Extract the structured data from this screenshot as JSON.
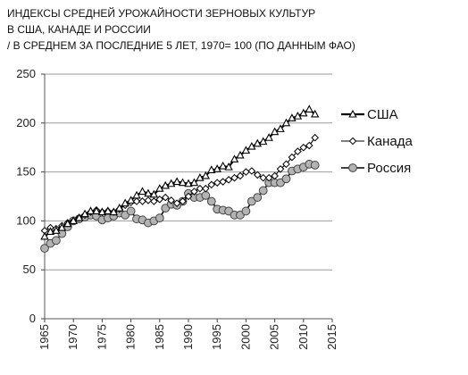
{
  "title_lines": [
    "ИНДЕКСЫ СРЕДНЕЙ УРОЖАЙНОСТИ ЗЕРНОВЫХ КУЛЬТУР",
    "В США, КАНАДЕ И РОССИИ",
    "/ В СРЕДНЕМ ЗА ПОСЛЕДНИЕ 5 ЛЕТ, 1970= 100 (ПО ДАННЫМ ФАО)"
  ],
  "chart_data": {
    "type": "line",
    "title": "ИНДЕКСЫ СРЕДНЕЙ УРОЖАЙНОСТИ ЗЕРНОВЫХ КУЛЬТУР В США, КАНАДЕ И РОССИИ / В СРЕДНЕМ ЗА ПОСЛЕДНИЕ 5 ЛЕТ, 1970= 100 (ПО ДАННЫМ ФАО)",
    "xlabel": "",
    "ylabel": "",
    "xlim": [
      1965,
      2015
    ],
    "ylim": [
      0,
      250
    ],
    "x_ticks": [
      1965,
      1970,
      1975,
      1980,
      1985,
      1990,
      1995,
      2000,
      2005,
      2010,
      2015
    ],
    "y_ticks": [
      0,
      50,
      100,
      150,
      200,
      250
    ],
    "grid": "horizontal",
    "legend_position": "right",
    "x": [
      1965,
      1966,
      1967,
      1968,
      1969,
      1970,
      1971,
      1972,
      1973,
      1974,
      1975,
      1976,
      1977,
      1978,
      1979,
      1980,
      1981,
      1982,
      1983,
      1984,
      1985,
      1986,
      1987,
      1988,
      1989,
      1990,
      1991,
      1992,
      1993,
      1994,
      1995,
      1996,
      1997,
      1998,
      1999,
      2000,
      2001,
      2002,
      2003,
      2004,
      2005,
      2006,
      2007,
      2008,
      2009,
      2010,
      2011,
      2012
    ],
    "series": [
      {
        "name": "США",
        "marker": "triangle",
        "color": "#000000",
        "values": [
          84,
          89,
          90,
          93,
          97,
          100,
          103,
          107,
          110,
          110,
          109,
          110,
          109,
          113,
          118,
          121,
          126,
          130,
          128,
          127,
          133,
          136,
          138,
          140,
          139,
          138,
          139,
          144,
          146,
          152,
          153,
          156,
          155,
          163,
          167,
          172,
          176,
          179,
          181,
          185,
          191,
          194,
          200,
          205,
          207,
          210,
          214,
          209
        ]
      },
      {
        "name": "Канада",
        "marker": "diamond",
        "color": "#000000",
        "values": [
          90,
          93,
          92,
          95,
          98,
          100,
          103,
          106,
          109,
          111,
          109,
          110,
          109,
          112,
          116,
          119,
          120,
          120,
          121,
          120,
          122,
          124,
          121,
          118,
          120,
          125,
          130,
          133,
          133,
          137,
          139,
          140,
          142,
          144,
          146,
          150,
          151,
          147,
          144,
          144,
          146,
          153,
          158,
          165,
          171,
          175,
          177,
          185
        ]
      },
      {
        "name": "Россия",
        "marker": "circle",
        "color": "#000000",
        "fill": "#b3b3b3",
        "values": [
          72,
          77,
          80,
          87,
          94,
          100,
          102,
          104,
          106,
          105,
          101,
          103,
          105,
          108,
          106,
          110,
          102,
          101,
          98,
          100,
          103,
          113,
          117,
          116,
          120,
          128,
          124,
          124,
          126,
          120,
          112,
          111,
          110,
          106,
          106,
          110,
          120,
          124,
          131,
          139,
          139,
          139,
          143,
          151,
          153,
          155,
          158,
          157
        ]
      }
    ]
  }
}
